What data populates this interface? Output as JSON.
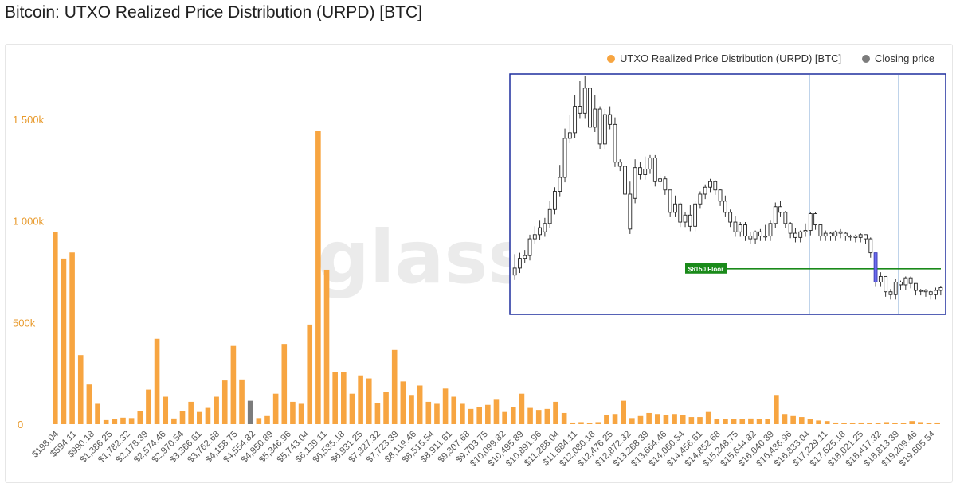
{
  "title": "Bitcoin: UTXO Realized Price Distribution (URPD) [BTC]",
  "legend": {
    "series": "UTXO Realized Price Distribution (URPD) [BTC]",
    "closing": "Closing price"
  },
  "watermark": "glassn",
  "colors": {
    "bar": "#f7a541",
    "closing": "#7c7c7c",
    "axis_text": "#e89a2c",
    "inset_border": "#1f2e9e",
    "floor_line": "#1a8a1a",
    "highlight_candle": "#6b6bf0"
  },
  "chart_data": {
    "type": "bar",
    "y_axis": {
      "ticks": [
        "0",
        "500k",
        "1 000k",
        "1 500k"
      ],
      "tick_values": [
        0,
        500000,
        1000000,
        1500000
      ],
      "ylim": [
        0,
        1700000
      ]
    },
    "x_tick_labels": [
      "$198.04",
      "$594.11",
      "$990.18",
      "$1,386.25",
      "$1,782.32",
      "$2,178.39",
      "$2,574.46",
      "$2,970.54",
      "$3,366.61",
      "$3,762.68",
      "$4,158.75",
      "$4,554.82",
      "$4,950.89",
      "$5,346.96",
      "$5,743.04",
      "$6,139.11",
      "$6,535.18",
      "$6,931.25",
      "$7,327.32",
      "$7,723.39",
      "$8,119.46",
      "$8,515.54",
      "$8,911.61",
      "$9,307.68",
      "$9,703.75",
      "$10,099.82",
      "$10,495.89",
      "$10,891.96",
      "$11,288.04",
      "$11,684.11",
      "$12,080.18",
      "$12,476.25",
      "$12,872.32",
      "$13,268.39",
      "$13,664.46",
      "$14,060.54",
      "$14,456.61",
      "$14,852.68",
      "$15,248.75",
      "$15,644.82",
      "$16,040.89",
      "$16,436.96",
      "$16,833.04",
      "$17,229.11",
      "$17,625.18",
      "$18,021.25",
      "$18,417.32",
      "$18,813.39",
      "$19,209.46",
      "$19,605.54"
    ],
    "values": [
      945000,
      815000,
      845000,
      340000,
      195000,
      100000,
      20000,
      25000,
      32000,
      30000,
      65000,
      170000,
      420000,
      135000,
      28000,
      65000,
      110000,
      60000,
      80000,
      135000,
      215000,
      385000,
      220000,
      115000,
      30000,
      40000,
      150000,
      395000,
      110000,
      100000,
      490000,
      1445000,
      760000,
      255000,
      255000,
      150000,
      240000,
      225000,
      105000,
      160000,
      365000,
      210000,
      140000,
      190000,
      110000,
      100000,
      175000,
      135000,
      100000,
      75000,
      85000,
      95000,
      120000,
      60000,
      85000,
      150000,
      80000,
      70000,
      75000,
      110000,
      55000,
      8000,
      10000,
      6000,
      10000,
      45000,
      50000,
      115000,
      30000,
      40000,
      55000,
      50000,
      45000,
      50000,
      45000,
      35000,
      35000,
      60000,
      25000,
      25000,
      25000,
      25000,
      28000,
      25000,
      25000,
      140000,
      50000,
      40000,
      35000,
      25000,
      18000,
      15000,
      8000,
      5000,
      5000,
      8000,
      4000,
      4000,
      10000,
      6000,
      4000,
      15000,
      10000,
      5000,
      8000
    ],
    "closing_index": 23,
    "inset": {
      "type": "candlestick",
      "annotation": "$6150 Floor",
      "floor_price": 6150,
      "ylim": [
        3000,
        20000
      ],
      "candles": [
        [
          5700,
          6200,
          7200
        ],
        [
          6200,
          6900,
          7300
        ],
        [
          6900,
          7100,
          7500
        ],
        [
          7100,
          8300,
          8600
        ],
        [
          8300,
          8600,
          9200
        ],
        [
          8600,
          9100,
          9600
        ],
        [
          8800,
          9400,
          9800
        ],
        [
          9400,
          10400,
          11000
        ],
        [
          10400,
          11700,
          12000
        ],
        [
          11700,
          12700,
          13600
        ],
        [
          12700,
          15500,
          16200
        ],
        [
          15500,
          15900,
          17200
        ],
        [
          15900,
          17800,
          18600
        ],
        [
          17800,
          17300,
          19600
        ],
        [
          17300,
          19100,
          20000
        ],
        [
          19100,
          16300,
          19600
        ],
        [
          16300,
          17600,
          18600
        ],
        [
          17600,
          15100,
          17800
        ],
        [
          15100,
          17200,
          17600
        ],
        [
          17200,
          16500,
          17800
        ],
        [
          16500,
          13800,
          17000
        ],
        [
          13800,
          13500,
          14000
        ],
        [
          13500,
          11500,
          14200
        ],
        [
          11500,
          9000,
          12400
        ],
        [
          11200,
          13400,
          14000
        ],
        [
          13400,
          12900,
          13800
        ],
        [
          12900,
          13300,
          14200
        ],
        [
          13300,
          14100,
          14300
        ],
        [
          14100,
          12400,
          14300
        ],
        [
          12400,
          12600,
          12900
        ],
        [
          12600,
          11800,
          12800
        ],
        [
          11800,
          10200,
          11800
        ],
        [
          10200,
          10800,
          11400
        ],
        [
          10800,
          9500,
          10900
        ],
        [
          9500,
          10000,
          10200
        ],
        [
          10000,
          9200,
          10700
        ],
        [
          9200,
          10800,
          11000
        ],
        [
          10800,
          11500,
          11700
        ],
        [
          11500,
          12000,
          12200
        ],
        [
          12000,
          12400,
          12600
        ],
        [
          12400,
          11800,
          12500
        ],
        [
          11800,
          11000,
          11900
        ],
        [
          11000,
          10200,
          11400
        ],
        [
          10200,
          9500,
          10400
        ],
        [
          9500,
          8800,
          9900
        ],
        [
          8800,
          9300,
          9500
        ],
        [
          9300,
          8500,
          9500
        ],
        [
          8500,
          8300,
          8800
        ],
        [
          8300,
          8800,
          8900
        ],
        [
          8800,
          8500,
          9000
        ],
        [
          8500,
          8500,
          9300
        ],
        [
          8500,
          9400,
          9600
        ],
        [
          9400,
          10600,
          10900
        ],
        [
          10600,
          10200,
          11000
        ],
        [
          10200,
          9400,
          10300
        ],
        [
          9400,
          8700,
          9500
        ],
        [
          8700,
          8400,
          9100
        ],
        [
          8400,
          8800,
          8900
        ],
        [
          8800,
          8900,
          9400
        ],
        [
          8900,
          10100,
          10200
        ],
        [
          10100,
          9300,
          10200
        ],
        [
          9300,
          8500,
          9300
        ],
        [
          8500,
          8700,
          8900
        ],
        [
          8700,
          8500,
          8800
        ],
        [
          8500,
          8800,
          8900
        ],
        [
          8800,
          8700,
          9000
        ],
        [
          8700,
          8500,
          8800
        ],
        [
          8500,
          8500,
          8600
        ],
        [
          8500,
          8400,
          8600
        ],
        [
          8400,
          8600,
          8700
        ],
        [
          8600,
          8300,
          8600
        ],
        [
          8300,
          7300,
          8400
        ],
        [
          7300,
          5200,
          7300
        ],
        [
          5200,
          5600,
          5900
        ],
        [
          5600,
          4500,
          5600
        ],
        [
          4500,
          4300,
          4700
        ],
        [
          4300,
          5200,
          5400
        ],
        [
          5200,
          5000,
          5300
        ],
        [
          5000,
          5500,
          5600
        ],
        [
          5500,
          5100,
          5600
        ],
        [
          5100,
          4600,
          5100
        ],
        [
          4600,
          4600,
          4700
        ],
        [
          4600,
          4500,
          4700
        ],
        [
          4500,
          4300,
          4600
        ],
        [
          4300,
          4600,
          4800
        ],
        [
          4600,
          4800,
          4900
        ]
      ],
      "highlight_index": 72
    }
  }
}
